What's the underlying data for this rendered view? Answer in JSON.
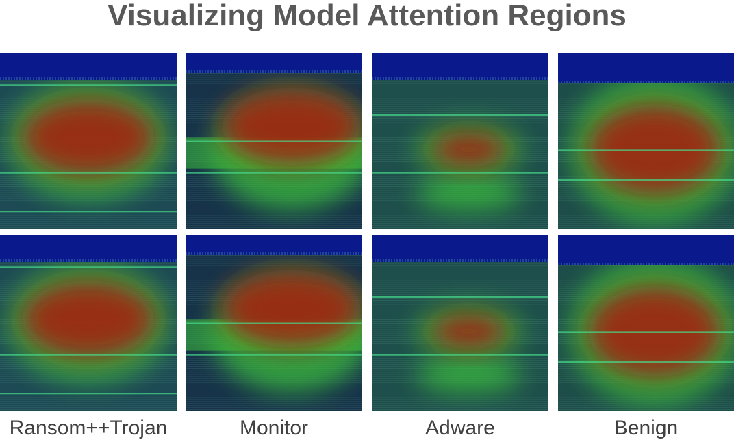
{
  "title": "Visualizing Model Attention Regions",
  "columns": [
    {
      "label": "Ransom++Trojan"
    },
    {
      "label": "Monitor"
    },
    {
      "label": "Adware"
    },
    {
      "label": "Benign"
    }
  ],
  "colors": {
    "background": "#ffffff",
    "title": "#595959",
    "caption": "#404040",
    "heat_cold": "#0a1a8c",
    "heat_base": "#1e4f4f",
    "heat_warm": "#3ec83a",
    "heat_hot": "#a81e0a"
  }
}
